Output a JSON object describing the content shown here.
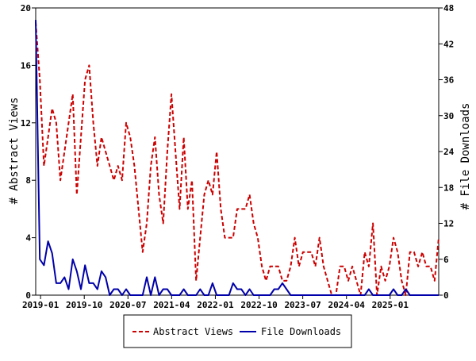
{
  "chart_data": {
    "type": "line",
    "title": "",
    "ylabel_left": "# Abstract Views",
    "ylabel_right": "# File Downloads",
    "xlabel": "",
    "x_start": "2018-12",
    "x_end": "2025-11",
    "x_ticks": [
      "2019-01",
      "2019-10",
      "2020-07",
      "2021-04",
      "2022-01",
      "2022-10",
      "2023-07",
      "2024-04",
      "2025-01"
    ],
    "ylim_left": [
      0,
      20
    ],
    "yticks_left": [
      "0",
      "4",
      "8",
      "12",
      "16",
      "20"
    ],
    "ylim_right": [
      0,
      48
    ],
    "yticks_right": [
      "0",
      "6",
      "12",
      "18",
      "24",
      "30",
      "36",
      "42",
      "48"
    ],
    "grid": false,
    "legend_position": "bottom",
    "series": [
      {
        "name": "Abstract Views",
        "axis": "left",
        "color": "#cc0000",
        "dash": "dashed",
        "values": [
          19,
          15,
          9,
          11,
          13,
          12,
          8,
          10,
          12,
          14,
          7,
          11,
          15,
          16,
          12,
          9,
          11,
          10,
          9,
          8,
          9,
          8,
          12,
          11,
          9,
          6,
          3,
          5,
          9,
          11,
          7,
          5,
          10,
          14,
          10,
          6,
          11,
          6,
          8,
          1,
          4,
          7,
          8,
          7,
          10,
          6,
          4,
          4,
          4,
          6,
          6,
          6,
          7,
          5,
          4,
          2,
          1,
          2,
          2,
          2,
          1,
          1,
          2,
          4,
          2,
          3,
          3,
          3,
          2,
          4,
          2,
          1,
          0,
          0,
          2,
          2,
          1,
          2,
          1,
          0,
          3,
          2,
          5,
          0,
          2,
          1,
          2,
          4,
          3,
          1,
          0,
          3,
          3,
          2,
          3,
          2,
          2,
          1,
          4
        ]
      },
      {
        "name": "File Downloads",
        "axis": "right",
        "color": "#0000aa",
        "dash": "solid",
        "values": [
          46,
          6,
          5,
          9,
          7,
          2,
          2,
          3,
          1,
          6,
          4,
          1,
          5,
          2,
          2,
          1,
          4,
          3,
          0,
          1,
          1,
          0,
          1,
          0,
          0,
          0,
          0,
          3,
          0,
          3,
          0,
          1,
          1,
          0,
          0,
          0,
          1,
          0,
          0,
          0,
          1,
          0,
          0,
          2,
          0,
          0,
          0,
          0,
          2,
          1,
          1,
          0,
          1,
          0,
          0,
          0,
          0,
          0,
          1,
          1,
          2,
          1,
          0,
          0,
          0,
          0,
          0,
          0,
          0,
          0,
          0,
          0,
          0,
          0,
          0,
          0,
          0,
          0,
          0,
          0,
          0,
          1,
          0,
          0,
          0,
          0,
          0,
          1,
          0,
          0,
          1,
          0,
          0,
          0,
          0,
          0,
          0,
          0,
          0
        ]
      }
    ]
  }
}
